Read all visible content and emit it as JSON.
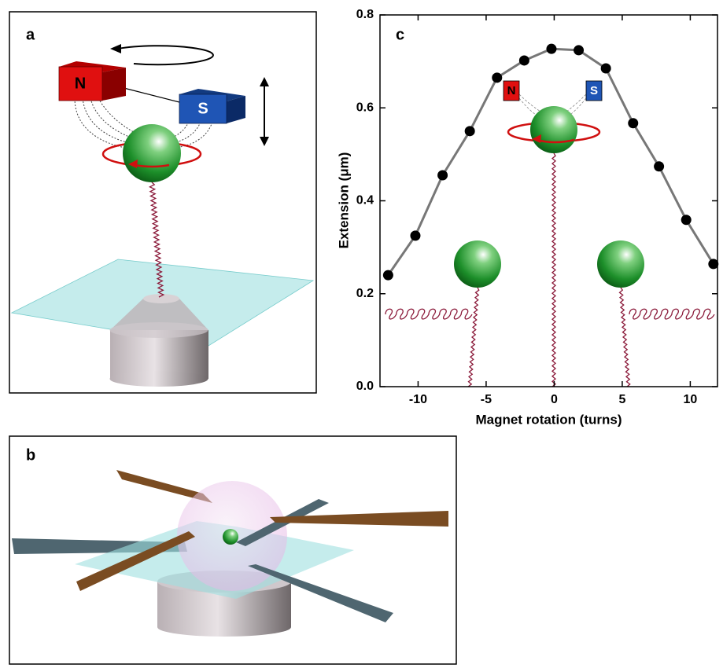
{
  "panels": {
    "a": {
      "label": "a",
      "magnet_n": "N",
      "magnet_s": "S"
    },
    "b": {
      "label": "b"
    }
  },
  "chart_data": {
    "type": "line",
    "panel_label": "c",
    "x_label": "Magnet rotation (turns)",
    "y_label": "Extension (μm)",
    "x": [
      -12.2,
      -10.2,
      -8.2,
      -6.2,
      -4.2,
      -2.2,
      -0.2,
      1.8,
      3.8,
      5.8,
      7.7,
      9.7,
      11.7
    ],
    "series": [
      {
        "color": "#000000",
        "line_color": "#777777",
        "values": [
          0.24,
          0.325,
          0.455,
          0.55,
          0.665,
          0.702,
          0.727,
          0.724,
          0.685,
          0.567,
          0.474,
          0.359,
          0.264
        ]
      }
    ],
    "xlim": [
      -12.8,
      12
    ],
    "ylim": [
      0,
      0.8
    ],
    "xticks": [
      -10,
      -5,
      0,
      5,
      10
    ],
    "yticks": [
      {
        "value": 0,
        "label": "0.0"
      },
      0.2,
      0.4,
      0.6,
      0.8
    ],
    "inset_magnet_labels": [
      "N",
      "S"
    ]
  }
}
